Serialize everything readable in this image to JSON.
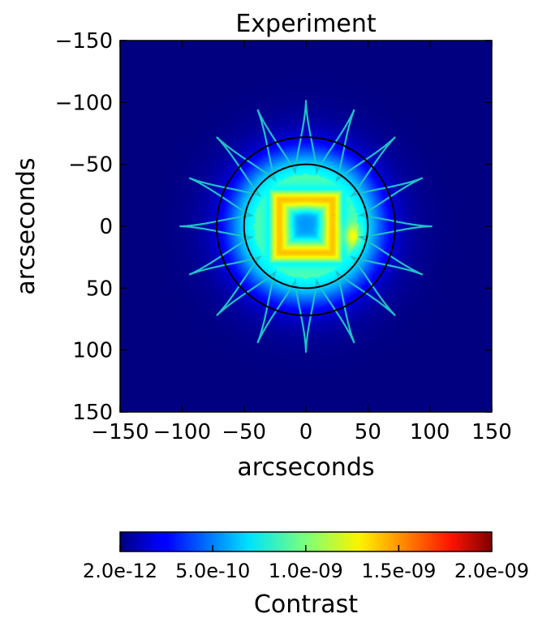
{
  "chart_data": {
    "type": "heatmap",
    "title": "Experiment",
    "xlabel": "arcseconds",
    "ylabel": "arcseconds",
    "xlim": [
      -150,
      150
    ],
    "ylim": [
      -150,
      150
    ],
    "y_inverted": true,
    "x_ticks": [
      "−150",
      "−100",
      "−50",
      "0",
      "50",
      "100",
      "150"
    ],
    "y_ticks": [
      "−150",
      "−100",
      "−50",
      "0",
      "50",
      "100",
      "150"
    ],
    "x_tick_values": [
      -150,
      -100,
      -50,
      0,
      50,
      100,
      150
    ],
    "y_tick_values": [
      -150,
      -100,
      -50,
      0,
      50,
      100,
      150
    ],
    "colormap": "jet",
    "colorbar": {
      "label": "Contrast",
      "range": [
        2e-12,
        2e-09
      ],
      "tick_labels": [
        "2.0e-12",
        "5.0e-10",
        "1.0e-09",
        "1.5e-09",
        "2.0e-09"
      ],
      "tick_values": [
        2e-12,
        5e-10,
        1e-09,
        1.5e-09,
        2e-09
      ]
    },
    "features": {
      "central_square_contrast": 1.4e-09,
      "center_contrast": 5.5e-10,
      "hotspot_contrast": 1.7e-09,
      "hotspot_x": 38,
      "hotspot_y": 8,
      "inner_circle_radius": 50,
      "outer_circle_radius": 72,
      "starshade_petals": 16,
      "petal_tip_radius": 102,
      "petal_valley_radius": 45,
      "starshade_color": "#20c0c8",
      "circle_color": "#000000"
    }
  }
}
